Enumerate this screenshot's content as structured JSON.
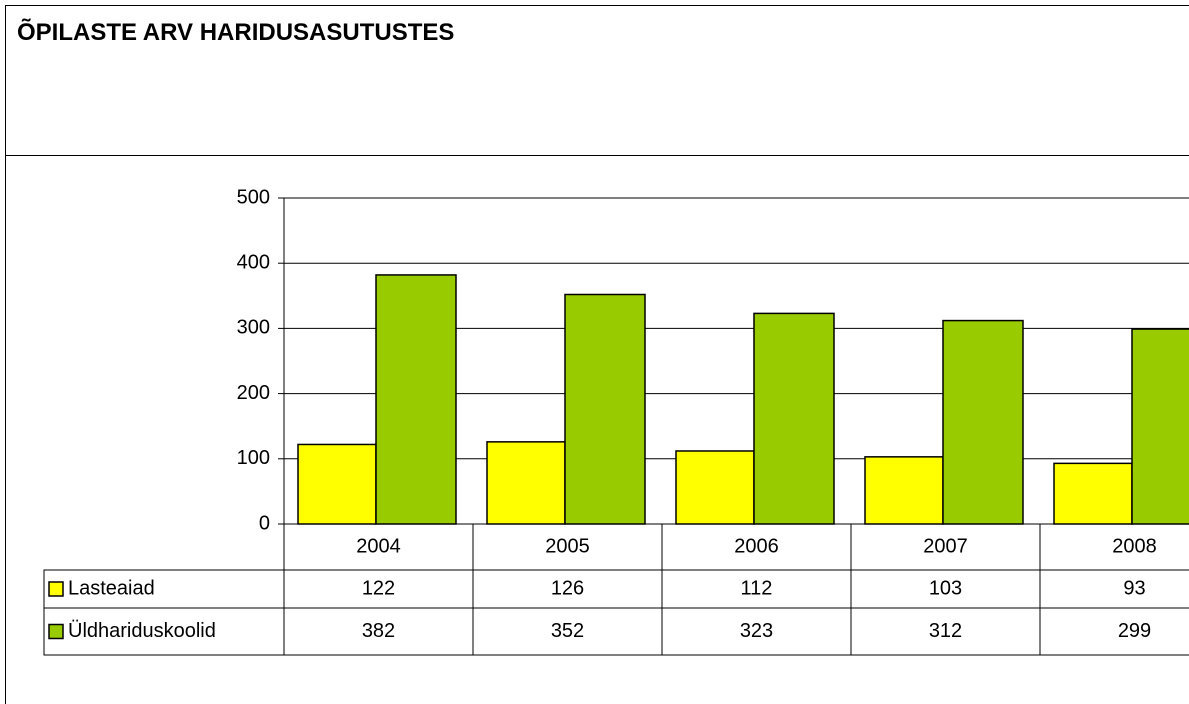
{
  "chart_data": {
    "type": "bar",
    "title": "ÕPILASTE ARV HARIDUSASUTUSTES",
    "categories": [
      "2004",
      "2005",
      "2006",
      "2007",
      "2008"
    ],
    "series": [
      {
        "name": "Lasteaiad",
        "color": "#ffff00",
        "values": [
          122,
          126,
          112,
          103,
          93
        ]
      },
      {
        "name": "Üldhariduskoolid",
        "color": "#99cc00",
        "values": [
          382,
          352,
          323,
          312,
          299
        ]
      }
    ],
    "ylim": [
      0,
      500
    ],
    "yticks": [
      0,
      100,
      200,
      300,
      400,
      500
    ],
    "grid": true
  }
}
